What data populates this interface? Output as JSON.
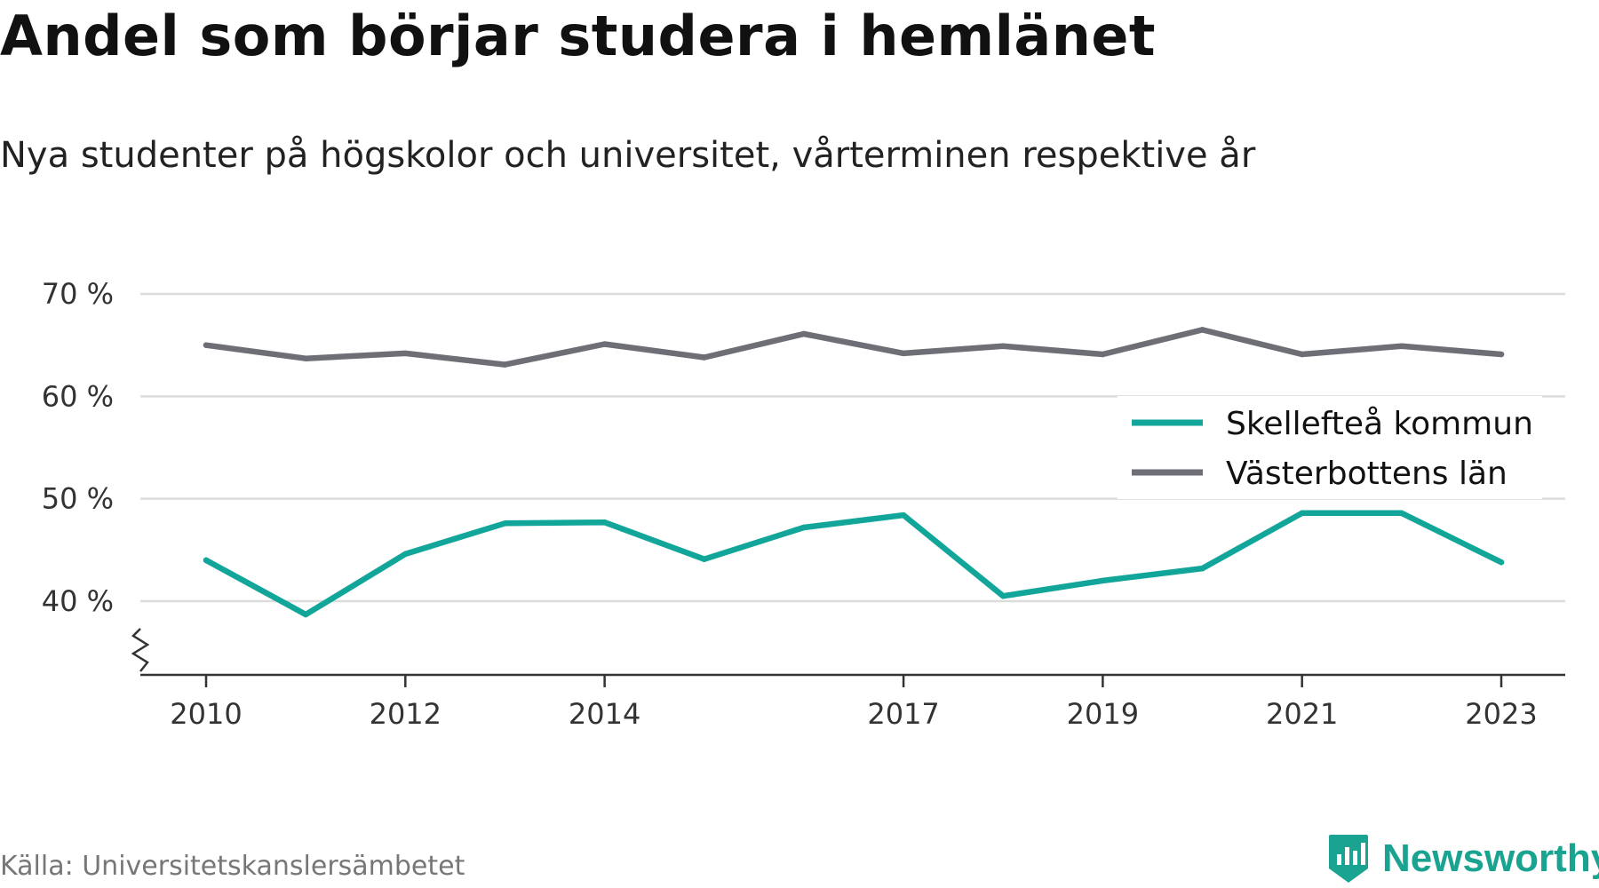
{
  "header": {
    "title": "Andel som börjar studera i hemlänet",
    "subtitle": "Nya studenter på högskolor och universitet, vårterminen respektive år"
  },
  "footer": {
    "source": "Källa: Universitetskanslersämbetet",
    "brand": "Newsworthy"
  },
  "colors": {
    "skelleftea": "#12a69a",
    "vasterbotten": "#6e6e76",
    "grid": "#dcdcdc",
    "axis": "#333333",
    "brand": "#1aa391"
  },
  "chart_data": {
    "type": "line",
    "title": "Andel som börjar studera i hemlänet",
    "subtitle": "Nya studenter på högskolor och universitet, vårterminen respektive år",
    "x": [
      2010,
      2011,
      2012,
      2013,
      2014,
      2015,
      2016,
      2017,
      2018,
      2019,
      2020,
      2021,
      2022,
      2023
    ],
    "x_tick_labels": [
      "2010",
      "2012",
      "2014",
      "2017",
      "2019",
      "2021",
      "2023"
    ],
    "y_ticks": [
      40,
      50,
      60,
      70
    ],
    "y_tick_labels": [
      "40 %",
      "50 %",
      "60 %",
      "70 %"
    ],
    "ylim": [
      33,
      71
    ],
    "y_axis_broken": true,
    "grid": true,
    "legend_position": "right",
    "series": [
      {
        "name": "Skellefteå kommun",
        "color": "#12a69a",
        "values": [
          44.0,
          38.7,
          44.6,
          47.6,
          47.7,
          44.1,
          47.2,
          48.4,
          40.5,
          42.0,
          43.2,
          48.6,
          48.6,
          43.8
        ]
      },
      {
        "name": "Västerbottens län",
        "color": "#6e6e76",
        "values": [
          65.0,
          63.7,
          64.2,
          63.1,
          65.1,
          63.8,
          66.1,
          64.2,
          64.9,
          64.1,
          66.5,
          64.1,
          64.9,
          64.1
        ]
      }
    ]
  }
}
